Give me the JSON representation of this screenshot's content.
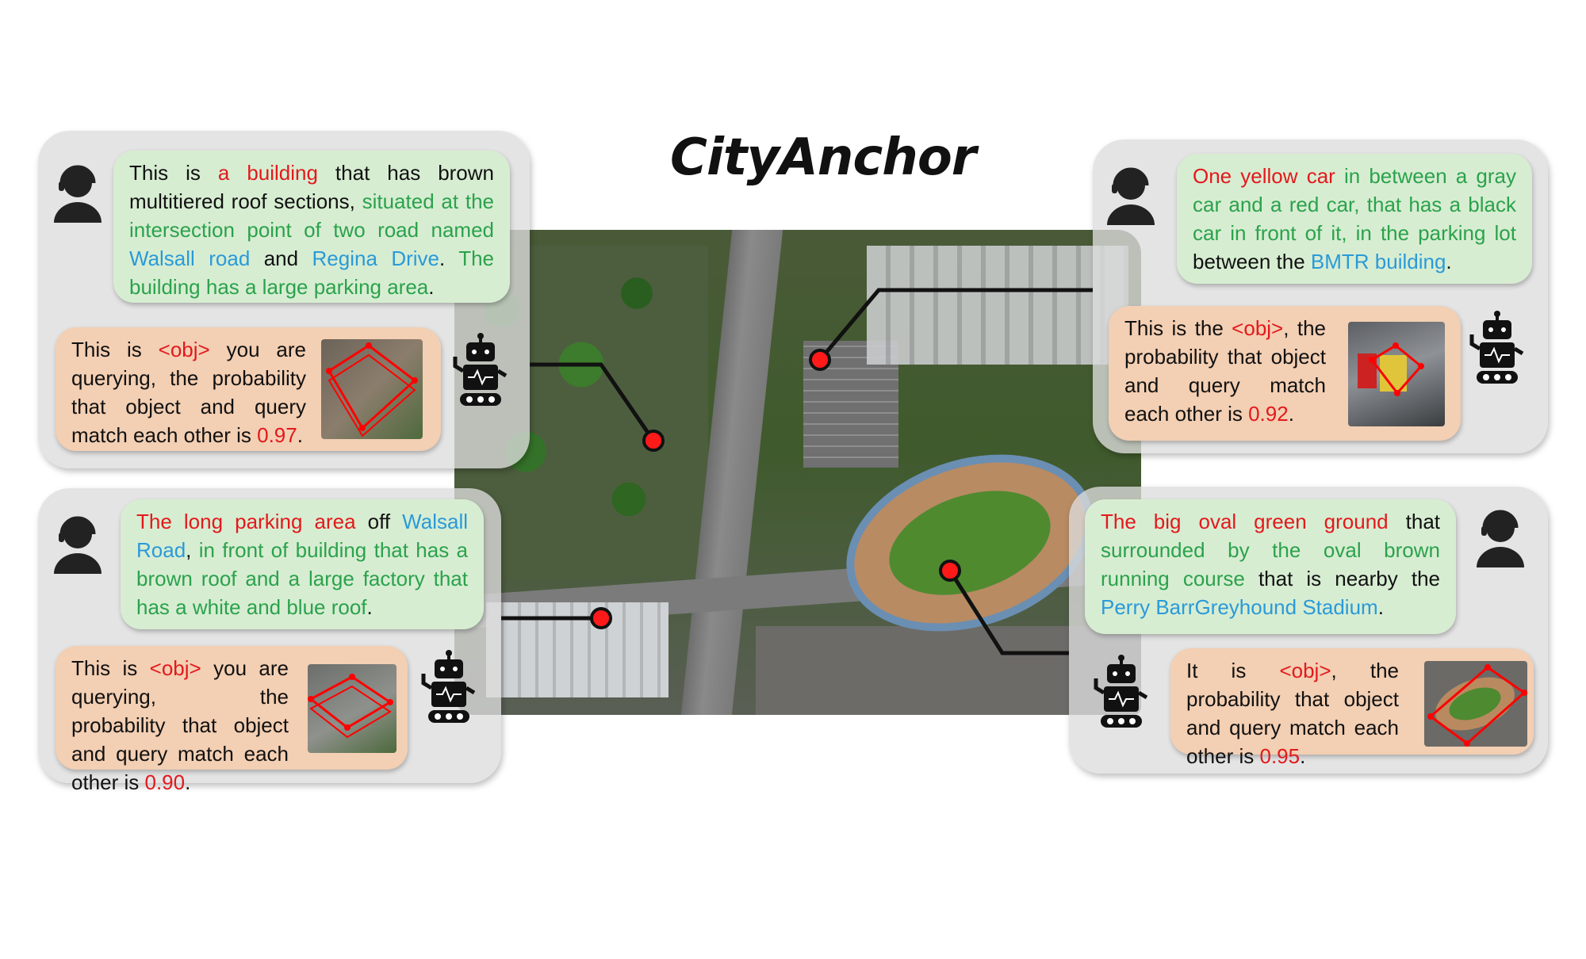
{
  "title": "CityAnchor",
  "colors": {
    "target": "#e3191c",
    "attribute": "#2ba24c",
    "landmark": "#2a9ad8",
    "query_bubble": "#d7edd2",
    "answer_bubble": "#f3cfb3",
    "panel": "#dcdcdc",
    "marker": "#ff1a1a"
  },
  "icons": [
    "user-headset-icon",
    "robot-icon"
  ],
  "panels": [
    {
      "query": [
        {
          "t": "This is ",
          "c": "dark"
        },
        {
          "t": "a building",
          "c": "red"
        },
        {
          "t": " that has brown multitiered roof sections, ",
          "c": "dark"
        },
        {
          "t": "situated at the intersection point of two road named ",
          "c": "green"
        },
        {
          "t": "Walsall road",
          "c": "blue"
        },
        {
          "t": " and ",
          "c": "dark"
        },
        {
          "t": "Regina Drive",
          "c": "blue"
        },
        {
          "t": ". ",
          "c": "dark"
        },
        {
          "t": "The building has a large parking area",
          "c": "green"
        },
        {
          "t": ".",
          "c": "dark"
        }
      ],
      "answer": [
        {
          "t": "This is ",
          "c": "dark"
        },
        {
          "t": "<obj>",
          "c": "red"
        },
        {
          "t": " you are querying, the probability that object and query match each other is ",
          "c": "dark"
        },
        {
          "t": "0.97",
          "c": "red"
        },
        {
          "t": ".",
          "c": "dark"
        }
      ]
    },
    {
      "query": [
        {
          "t": "One yellow car",
          "c": "red"
        },
        {
          "t": " in between a gray car and a red car, that has a black car in front of it, in the parking lot",
          "c": "green"
        },
        {
          "t": " between the ",
          "c": "dark"
        },
        {
          "t": "BMTR building",
          "c": "blue"
        },
        {
          "t": ".",
          "c": "dark"
        }
      ],
      "answer": [
        {
          "t": "This is the ",
          "c": "dark"
        },
        {
          "t": "<obj>",
          "c": "red"
        },
        {
          "t": ", the probability that object and query match each other is ",
          "c": "dark"
        },
        {
          "t": "0.92",
          "c": "red"
        },
        {
          "t": ".",
          "c": "dark"
        }
      ]
    },
    {
      "query": [
        {
          "t": "The long parking area",
          "c": "red"
        },
        {
          "t": " off ",
          "c": "dark"
        },
        {
          "t": "Walsall Road",
          "c": "blue"
        },
        {
          "t": ", ",
          "c": "dark"
        },
        {
          "t": "in front of building that has a brown roof and a large factory that has a white and blue roof",
          "c": "green"
        },
        {
          "t": ".",
          "c": "dark"
        }
      ],
      "answer": [
        {
          "t": "This is ",
          "c": "dark"
        },
        {
          "t": "<obj>",
          "c": "red"
        },
        {
          "t": " you are querying, the probability that object and query match each other is ",
          "c": "dark"
        },
        {
          "t": "0.90",
          "c": "red"
        },
        {
          "t": ".",
          "c": "dark"
        }
      ]
    },
    {
      "query": [
        {
          "t": "The big oval green ground",
          "c": "red"
        },
        {
          "t": " that ",
          "c": "dark"
        },
        {
          "t": "surrounded by the oval brown running course",
          "c": "green"
        },
        {
          "t": " that is nearby the ",
          "c": "dark"
        },
        {
          "t": "Perry BarrGreyhound Stadium",
          "c": "blue"
        },
        {
          "t": ".",
          "c": "dark"
        }
      ],
      "answer": [
        {
          "t": "It is ",
          "c": "dark"
        },
        {
          "t": "<obj>",
          "c": "red"
        },
        {
          "t": ", the probability that object and query match each other is ",
          "c": "dark"
        },
        {
          "t": "0.95",
          "c": "red"
        },
        {
          "t": ".",
          "c": "dark"
        }
      ]
    }
  ]
}
